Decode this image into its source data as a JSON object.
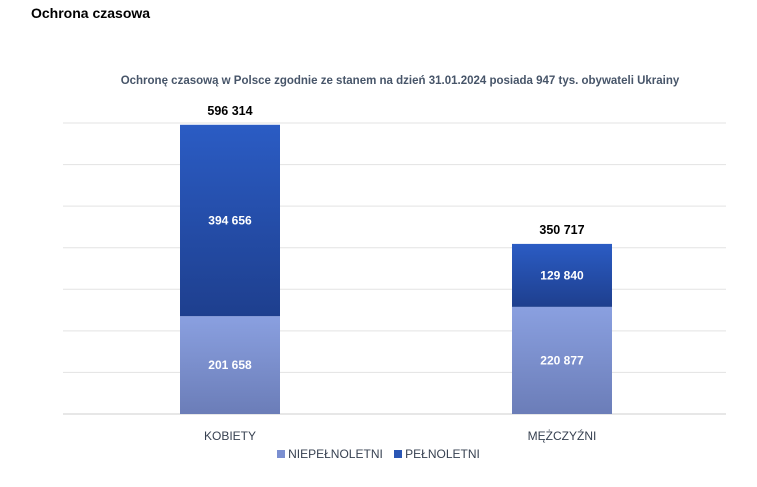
{
  "page": {
    "heading": "Ochrona czasowa"
  },
  "chart_data": {
    "type": "bar",
    "stacked": true,
    "title": "Ochronę czasową w Polsce zgodnie ze stanem na dzień 31.01.2024 posiada 947 tys. obywateli Ukrainy",
    "categories": [
      "KOBIETY",
      "MĘŻCZYŹNI"
    ],
    "series": [
      {
        "name": "NIEPEŁNOLETNI",
        "values": [
          201658,
          220877
        ],
        "labels": [
          "201 658",
          "220 877"
        ],
        "color": "#7b8fd1"
      },
      {
        "name": "PEŁNOLETNI",
        "values": [
          394656,
          129840
        ],
        "labels": [
          "394 656",
          "129 840"
        ],
        "color": "#2a56b4"
      }
    ],
    "totals": [
      596314,
      350717
    ],
    "total_labels": [
      "596 314",
      "350 717"
    ],
    "ylim": [
      0,
      600000
    ],
    "grid": true,
    "legend_position": "bottom"
  }
}
